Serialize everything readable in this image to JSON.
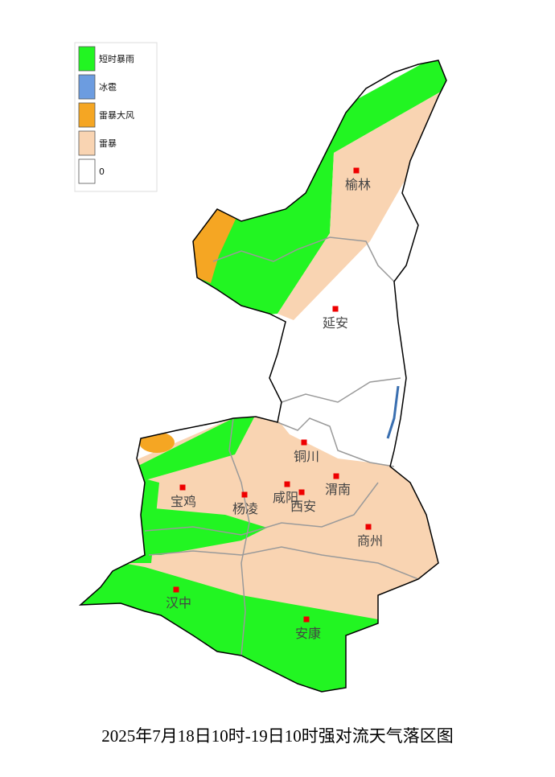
{
  "legend": {
    "items": [
      {
        "label": "短时暴雨",
        "color": "#22f522"
      },
      {
        "label": "冰雹",
        "color": "#6c9ce0"
      },
      {
        "label": "雷暴大风",
        "color": "#f5a623"
      },
      {
        "label": "雷暴",
        "color": "#f9d4b2"
      },
      {
        "label": "0",
        "color": "#ffffff"
      }
    ]
  },
  "cities": [
    {
      "name": "榆林"
    },
    {
      "name": "延安"
    },
    {
      "name": "铜川"
    },
    {
      "name": "渭南"
    },
    {
      "name": "咸阳"
    },
    {
      "name": "西安"
    },
    {
      "name": "宝鸡"
    },
    {
      "name": "杨凌"
    },
    {
      "name": "商州"
    },
    {
      "name": "汉中"
    },
    {
      "name": "安康"
    }
  ],
  "caption": "2025年7月18日10时-19日10时强对流天气落区图"
}
